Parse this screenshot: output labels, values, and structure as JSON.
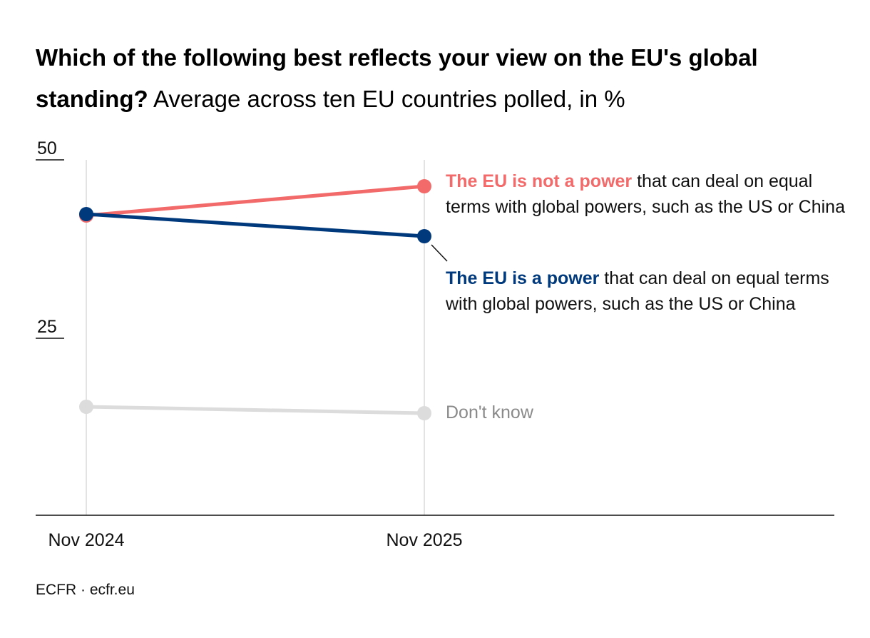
{
  "title": {
    "bold": "Which of the following best reflects your view on the EU's global standing?",
    "subtitle": "Average across ten EU countries polled, in %"
  },
  "source": "ECFR · ecfr.eu",
  "chart_data": {
    "type": "line",
    "title": "Which of the following best reflects your view on the EU's global standing?",
    "subtitle": "Average across ten EU countries polled, in %",
    "categories": [
      "Nov 2024",
      "Nov 2025"
    ],
    "ylim": [
      0,
      50
    ],
    "yticks": [
      "50",
      "25"
    ],
    "series": [
      {
        "name": "Don't know",
        "bold": "",
        "rest": "Don't know",
        "color": "#dcdcdc",
        "labelColor": "#8a8a8a",
        "values": [
          15.4,
          14.5
        ]
      },
      {
        "name": "The EU is not a power that can deal on equal terms with global powers, such as the US or China",
        "bold": "The EU is not a power",
        "rest": " that can deal on equal terms with global powers, such as the US or China",
        "color": "#f26a6a",
        "values": [
          42.2,
          46.3
        ]
      },
      {
        "name": "The EU is a power that can deal on equal terms with global powers, such as the US or China",
        "bold": "The EU is a power",
        "rest": " that can deal on equal terms with global powers, such as the US or China",
        "color": "#003a7d",
        "values": [
          42.4,
          39.3
        ]
      }
    ]
  }
}
